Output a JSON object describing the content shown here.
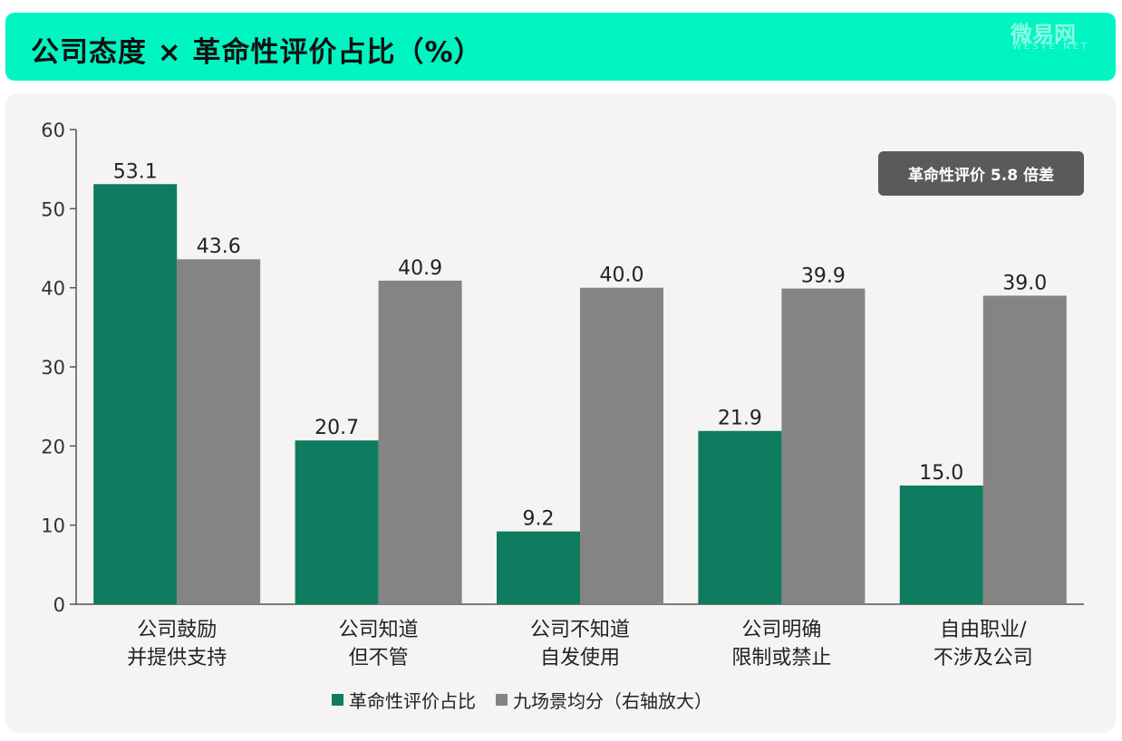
{
  "header": {
    "title": "公司态度 × 革命性评价占比（%）",
    "watermark": "微易网",
    "watermark_sub": "WESTE.NET"
  },
  "badge": {
    "label": "革命性评价 5.8 倍差"
  },
  "legend": {
    "items": [
      {
        "label": "革命性评价占比",
        "color": "#0f7b5f"
      },
      {
        "label": "九场景均分（右轴放大）",
        "color": "#848484"
      }
    ]
  },
  "chart_data": {
    "type": "bar",
    "categories": [
      [
        "公司鼓励",
        "并提供支持"
      ],
      [
        "公司知道",
        "但不管"
      ],
      [
        "公司不知道",
        "自发使用"
      ],
      [
        "公司明确",
        "限制或禁止"
      ],
      [
        "自由职业/",
        "不涉及公司"
      ]
    ],
    "series": [
      {
        "name": "革命性评价占比",
        "values": [
          53.1,
          20.7,
          9.2,
          21.9,
          15.0
        ],
        "color": "#0f7b5f"
      },
      {
        "name": "九场景均分（右轴放大）",
        "values": [
          43.6,
          40.9,
          40.0,
          39.9,
          39.0
        ],
        "color": "#848484"
      }
    ],
    "value_labels": [
      [
        "53.1",
        "20.7",
        "9.2",
        "21.9",
        "15.0"
      ],
      [
        "43.6",
        "40.9",
        "40.0",
        "39.9",
        "39.0"
      ]
    ],
    "ylim": [
      0,
      60
    ],
    "yticks": [
      0,
      10,
      20,
      30,
      40,
      50,
      60
    ],
    "grid": false
  }
}
